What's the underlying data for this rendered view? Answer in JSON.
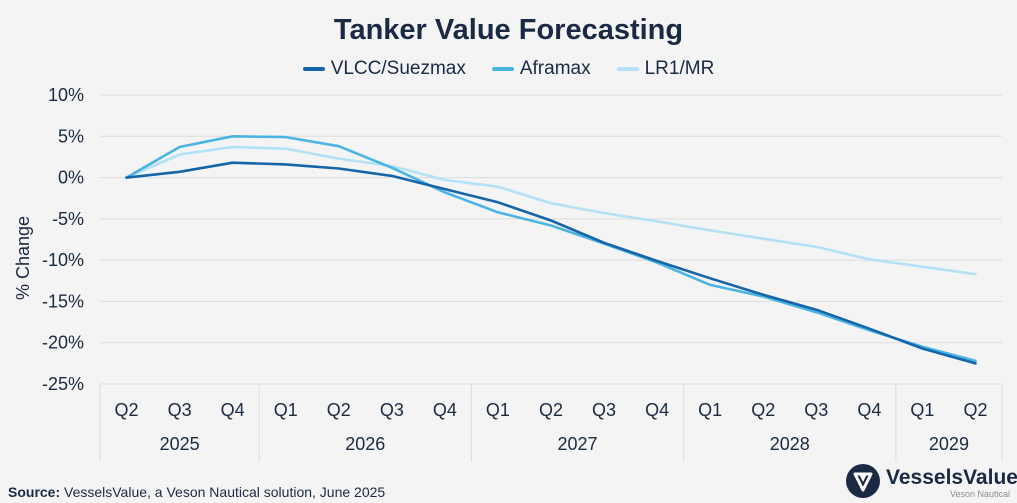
{
  "title": "Tanker Value Forecasting",
  "source_label": "Source:",
  "source_text": " VesselsValue, a Veson Nautical solution, June 2025",
  "logo": {
    "name": "VesselsValue",
    "sub": "Veson Nautical",
    "icon": "vesselsvalue-logo-icon"
  },
  "colors": {
    "vlcc": "#1565a8",
    "aframax": "#4ab4e2",
    "lr1mr": "#b3e2f6",
    "grid": "#dcdcdc",
    "text": "#1b2a44"
  },
  "chart_data": {
    "type": "line",
    "title": "Tanker Value Forecasting",
    "ylabel": "% Change",
    "xlabel": "",
    "ylim": [
      -25,
      10
    ],
    "yticks": [
      10,
      5,
      0,
      -5,
      -10,
      -15,
      -20,
      -25
    ],
    "ytick_labels": [
      "10%",
      "5%",
      "0%",
      "-5%",
      "-10%",
      "-15%",
      "-20%",
      "-25%"
    ],
    "grid": true,
    "legend": "top-center",
    "categories": [
      "Q2",
      "Q3",
      "Q4",
      "Q1",
      "Q2",
      "Q3",
      "Q4",
      "Q1",
      "Q2",
      "Q3",
      "Q4",
      "Q1",
      "Q2",
      "Q3",
      "Q4",
      "Q1",
      "Q2"
    ],
    "year_groups": [
      {
        "label": "2025",
        "count": 3
      },
      {
        "label": "2026",
        "count": 4
      },
      {
        "label": "2027",
        "count": 4
      },
      {
        "label": "2028",
        "count": 4
      },
      {
        "label": "2029",
        "count": 2
      }
    ],
    "series": [
      {
        "name": "VLCC/Suezmax",
        "color_key": "vlcc",
        "values": [
          0,
          0.7,
          1.8,
          1.6,
          1.1,
          0.2,
          -1.4,
          -3.0,
          -5.2,
          -7.9,
          -10.1,
          -12.2,
          -14.2,
          -16.0,
          -18.3,
          -20.7,
          -22.5
        ]
      },
      {
        "name": "Aframax",
        "color_key": "aframax",
        "values": [
          0,
          3.7,
          5.0,
          4.9,
          3.8,
          1.2,
          -1.8,
          -4.2,
          -5.8,
          -8.0,
          -10.3,
          -13.0,
          -14.4,
          -16.3,
          -18.5,
          -20.5,
          -22.2
        ]
      },
      {
        "name": "LR1/MR",
        "color_key": "lr1mr",
        "values": [
          0,
          2.8,
          3.7,
          3.5,
          2.3,
          1.4,
          -0.3,
          -1.1,
          -3.1,
          -4.3,
          -5.3,
          -6.4,
          -7.4,
          -8.4,
          -9.9,
          -10.8,
          -11.7
        ]
      }
    ]
  }
}
